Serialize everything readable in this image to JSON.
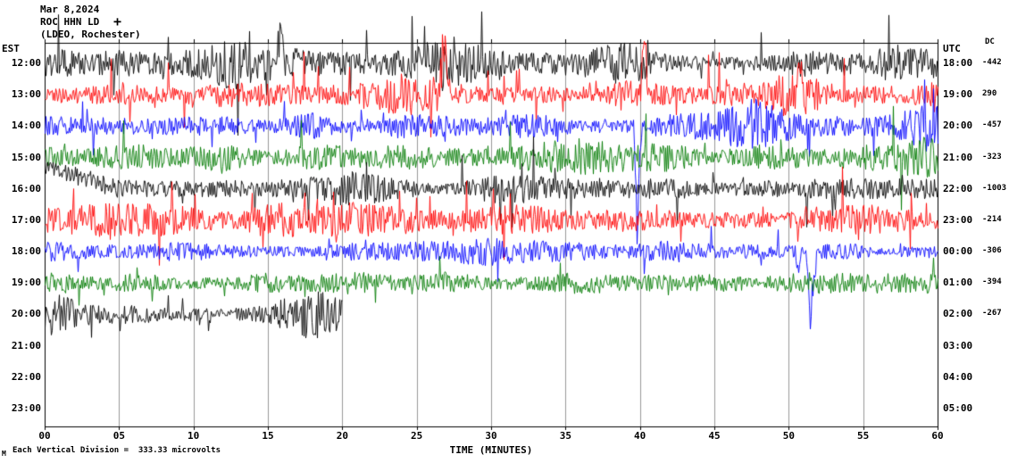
{
  "title": {
    "date": "Mar 8,2024",
    "station": "ROC HHN LD",
    "network": "(LDEO, Rochester)",
    "scale_marker": "+"
  },
  "headers": {
    "left": "EST",
    "right": "UTC",
    "dc": "DC"
  },
  "x_axis": {
    "title": "TIME (MINUTES)",
    "ticks": [
      "00",
      "05",
      "10",
      "15",
      "20",
      "25",
      "30",
      "35",
      "40",
      "45",
      "50",
      "55",
      "60"
    ]
  },
  "footnote": "Each Vertical Division =  333.33 microvolts",
  "watermark": "M",
  "colors": {
    "black": "#000000",
    "red": "#ff0000",
    "blue": "#0000ff",
    "green": "#007b00",
    "grid": "#999999",
    "frame": "#000000"
  },
  "chart_data": {
    "type": "line",
    "subtype": "seismogram-helicorder",
    "station": "ROC HHN LD",
    "date": "Mar 8,2024",
    "x_label": "TIME (MINUTES)",
    "x_range_minutes": [
      0,
      60
    ],
    "x_tick_step_minutes": 5,
    "vertical_division_microvolts": 333.33,
    "rows": [
      {
        "est": "12:00",
        "utc": "18:00",
        "dc": -442,
        "color": "black",
        "recorded_minutes": 60,
        "amp": 11,
        "seed": 11,
        "spikes": 0.035,
        "spike_gain": 3,
        "bursts": [
          {
            "m": 3,
            "w": 3,
            "g": 1.7
          },
          {
            "m": 14,
            "w": 4,
            "g": 2.4
          },
          {
            "m": 27,
            "w": 2,
            "g": 2.1
          },
          {
            "m": 38,
            "w": 3,
            "g": 1.9
          },
          {
            "m": 57,
            "w": 3,
            "g": 2.1
          }
        ],
        "events": [
          {
            "m": 13.5,
            "w": 0.3,
            "down": -55
          },
          {
            "m": 15.8,
            "w": 0.3,
            "down": -50
          }
        ]
      },
      {
        "est": "13:00",
        "utc": "19:00",
        "dc": 290,
        "color": "red",
        "recorded_minutes": 60,
        "amp": 12,
        "seed": 22,
        "spikes": 0.035,
        "spike_gain": 2.8,
        "bursts": [
          {
            "m": 26,
            "w": 3,
            "g": 2.2
          },
          {
            "m": 40,
            "w": 2,
            "g": 1.8
          },
          {
            "m": 50,
            "w": 2,
            "g": 1.7
          }
        ],
        "events": [
          {
            "m": 26.8,
            "w": 0.4,
            "down": -95
          },
          {
            "m": 40.3,
            "w": 0.3,
            "down": -80
          },
          {
            "m": 50.7,
            "w": 0.25,
            "down": -60
          }
        ]
      },
      {
        "est": "14:00",
        "utc": "20:00",
        "dc": -457,
        "color": "blue",
        "recorded_minutes": 60,
        "amp": 11,
        "seed": 33,
        "spikes": 0.03,
        "spike_gain": 2.5,
        "bursts": [
          {
            "m": 45.5,
            "w": 4,
            "g": 2.5
          },
          {
            "m": 59,
            "w": 2,
            "g": 2.1
          }
        ],
        "events": [
          {
            "m": 39.8,
            "w": 0.3,
            "down": 125,
            "up": 15
          }
        ]
      },
      {
        "est": "15:00",
        "utc": "21:00",
        "dc": -323,
        "color": "green",
        "recorded_minutes": 60,
        "amp": 12,
        "seed": 44,
        "spikes": 0.025,
        "spike_gain": 2.4,
        "bursts": [
          {
            "m": 8,
            "w": 4,
            "g": 1.5
          },
          {
            "m": 33,
            "w": 4,
            "g": 1.5
          },
          {
            "m": 58,
            "w": 2.5,
            "g": 2.1
          }
        ]
      },
      {
        "est": "16:00",
        "utc": "22:00",
        "dc": -1003,
        "color": "black",
        "recorded_minutes": 60,
        "amp": 9,
        "seed": 55,
        "spikes": 0.03,
        "spike_gain": 2.5,
        "drift": {
          "until": 5,
          "offset": -24
        },
        "bursts": [
          {
            "m": 20,
            "w": 4,
            "g": 1.6
          },
          {
            "m": 33,
            "w": 5,
            "g": 1.6
          },
          {
            "m": 42,
            "w": 3,
            "g": 1.5
          }
        ]
      },
      {
        "est": "17:00",
        "utc": "23:00",
        "dc": -214,
        "color": "red",
        "recorded_minutes": 60,
        "amp": 11,
        "seed": 66,
        "spikes": 0.03,
        "spike_gain": 2.4,
        "bursts": [
          {
            "m": 6,
            "w": 3,
            "g": 1.6
          },
          {
            "m": 18,
            "w": 3,
            "g": 2.0
          },
          {
            "m": 31,
            "w": 3,
            "g": 1.6
          },
          {
            "m": 55,
            "w": 3,
            "g": 1.5
          }
        ]
      },
      {
        "est": "18:00",
        "utc": "00:00",
        "dc": -306,
        "color": "blue",
        "recorded_minutes": 60,
        "amp": 9,
        "seed": 77,
        "spikes": 0.025,
        "spike_gain": 2.4,
        "bursts": [
          {
            "m": 28,
            "w": 4,
            "g": 1.5
          }
        ],
        "events": [
          {
            "m": 50.6,
            "w": 0.2,
            "down": 35
          },
          {
            "m": 51.5,
            "w": 0.35,
            "down": 152,
            "up": 18
          }
        ]
      },
      {
        "est": "19:00",
        "utc": "01:00",
        "dc": -394,
        "color": "green",
        "recorded_minutes": 60,
        "amp": 9,
        "seed": 88,
        "spikes": 0.02,
        "spike_gain": 2.2,
        "bursts": [
          {
            "m": 21,
            "w": 3,
            "g": 1.4
          },
          {
            "m": 47,
            "w": 4,
            "g": 1.3
          }
        ]
      },
      {
        "est": "20:00",
        "utc": "02:00",
        "dc": -267,
        "color": "black",
        "recorded_minutes": 20,
        "amp": 11,
        "seed": 99,
        "spikes": 0.03,
        "spike_gain": 2.5,
        "bursts": [
          {
            "m": 0.8,
            "w": 1,
            "g": 2.2
          },
          {
            "m": 17.5,
            "w": 2.2,
            "g": 2.3
          }
        ]
      },
      {
        "est": "21:00",
        "utc": "03:00",
        "dc": null,
        "color": "red",
        "recorded_minutes": 0
      },
      {
        "est": "22:00",
        "utc": "04:00",
        "dc": null,
        "color": "blue",
        "recorded_minutes": 0
      },
      {
        "est": "23:00",
        "utc": "05:00",
        "dc": null,
        "color": "green",
        "recorded_minutes": 0
      }
    ]
  }
}
